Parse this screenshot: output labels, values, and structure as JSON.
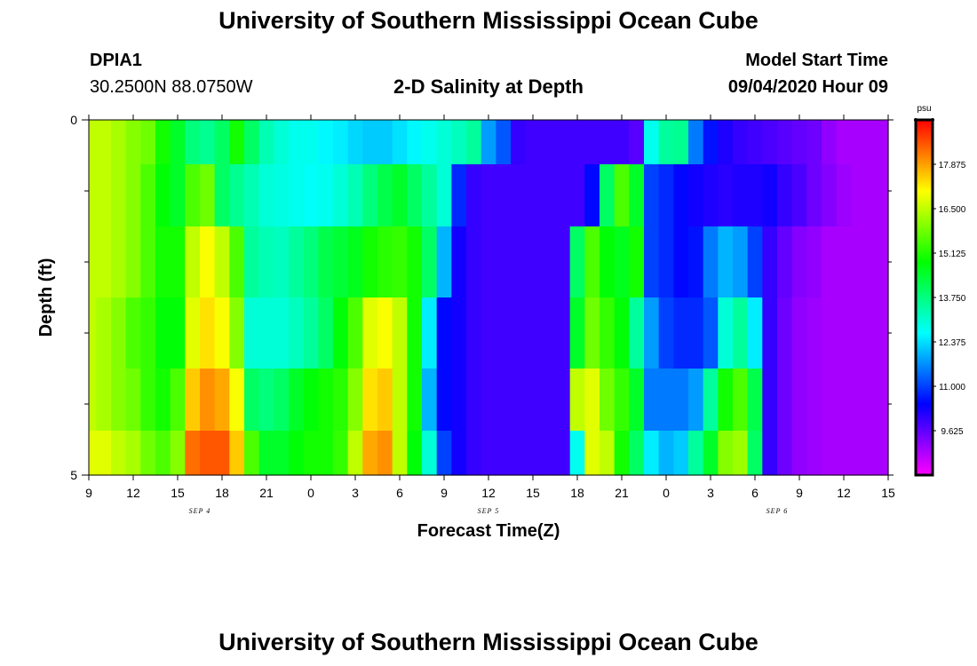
{
  "header": {
    "title": "University of Southern Mississippi Ocean Cube",
    "station": "DPIA1",
    "coords": "30.2500N 88.0750W",
    "subtitle": "2-D Salinity at Depth",
    "model_start_label": "Model Start Time",
    "model_start_value": "09/04/2020 Hour 09"
  },
  "footer": {
    "title": "University of Southern Mississippi Ocean Cube"
  },
  "chart_data": {
    "type": "heatmap",
    "title": "2-D Salinity at Depth",
    "xlabel": "Forecast Time(Z)",
    "ylabel": "Depth (ft)",
    "x_tick_labels": [
      "9",
      "12",
      "15",
      "18",
      "21",
      "0",
      "3",
      "6",
      "9",
      "12",
      "15",
      "18",
      "21",
      "0",
      "3",
      "6",
      "9",
      "12",
      "15"
    ],
    "x_range_hours": [
      0,
      54
    ],
    "date_labels": [
      {
        "text": "SEP 4",
        "hour": 7.5
      },
      {
        "text": "SEP 5",
        "hour": 27
      },
      {
        "text": "SEP 6",
        "hour": 46.5
      }
    ],
    "y_range_ft": [
      0,
      5
    ],
    "y_tick_labels": [
      {
        "value": 0,
        "label": "0"
      },
      {
        "value": 5,
        "label": "5"
      }
    ],
    "y_minor_ticks": [
      1,
      2,
      3,
      4
    ],
    "depth_layers_ft": [
      0.25,
      1.0,
      2.0,
      3.0,
      4.0,
      4.75
    ],
    "time_step_hours": 1,
    "salinity_psu": [
      [
        16.5,
        16.5,
        16.3,
        16.0,
        15.8,
        15.0,
        14.5,
        13.8,
        13.6,
        14.0,
        15.0,
        14.0,
        13.3,
        13.0,
        12.8,
        12.8,
        12.6,
        12.5,
        12.3,
        12.2,
        12.2,
        12.4,
        12.6,
        12.8,
        13.0,
        13.2,
        13.5,
        11.8,
        11.2,
        10.0,
        9.9,
        9.9,
        9.9,
        9.9,
        9.9,
        9.9,
        9.9,
        9.7,
        12.8,
        13.5,
        13.6,
        11.5,
        10.6,
        10.2,
        10.0,
        9.9,
        9.8,
        9.7,
        9.6,
        9.5,
        9.2,
        9.0,
        9.0,
        9.0,
        9.0
      ],
      [
        16.5,
        16.5,
        16.3,
        16.0,
        15.5,
        14.8,
        14.5,
        15.5,
        15.8,
        14.0,
        13.6,
        13.3,
        13.0,
        12.9,
        12.8,
        12.7,
        12.8,
        13.0,
        13.3,
        13.8,
        14.2,
        14.5,
        14.0,
        13.5,
        13.0,
        10.8,
        10.0,
        9.9,
        9.9,
        9.9,
        9.9,
        9.9,
        9.9,
        9.9,
        10.5,
        14.0,
        15.5,
        14.5,
        11.0,
        10.8,
        10.5,
        10.3,
        10.2,
        10.1,
        10.2,
        10.2,
        10.3,
        10.0,
        9.8,
        9.5,
        9.3,
        9.1,
        9.0,
        9.0,
        9.0
      ],
      [
        16.5,
        16.5,
        16.3,
        16.0,
        15.5,
        15.0,
        15.0,
        16.5,
        17.0,
        16.5,
        15.5,
        13.5,
        13.3,
        13.2,
        13.5,
        13.8,
        14.2,
        14.4,
        14.6,
        15.0,
        15.2,
        15.3,
        15.0,
        14.0,
        12.0,
        10.3,
        10.0,
        9.9,
        9.9,
        9.9,
        9.9,
        9.9,
        9.9,
        14.0,
        15.5,
        14.8,
        14.6,
        15.0,
        11.0,
        10.8,
        10.5,
        10.6,
        11.5,
        12.0,
        11.8,
        11.0,
        10.0,
        9.6,
        9.3,
        9.2,
        9.0,
        9.0,
        9.0,
        9.0,
        9.0
      ],
      [
        16.5,
        16.3,
        16.0,
        15.5,
        15.3,
        14.8,
        14.8,
        16.8,
        17.3,
        17.0,
        16.0,
        13.0,
        13.0,
        13.0,
        13.2,
        13.5,
        14.0,
        14.8,
        15.5,
        16.8,
        17.0,
        16.5,
        15.0,
        12.5,
        10.5,
        10.3,
        10.0,
        9.9,
        9.9,
        9.9,
        9.9,
        9.9,
        9.9,
        14.5,
        15.8,
        15.3,
        14.8,
        13.5,
        11.8,
        11.0,
        10.8,
        10.8,
        11.2,
        13.0,
        13.5,
        12.5,
        10.0,
        9.5,
        9.2,
        9.1,
        9.0,
        9.0,
        9.0,
        9.0,
        9.0
      ],
      [
        16.5,
        16.3,
        16.0,
        15.8,
        15.3,
        15.0,
        15.5,
        17.5,
        18.0,
        17.8,
        17.0,
        14.0,
        13.8,
        14.0,
        14.5,
        14.8,
        15.0,
        15.2,
        16.0,
        17.3,
        17.5,
        16.5,
        15.0,
        12.0,
        10.5,
        10.3,
        10.0,
        9.9,
        9.9,
        9.9,
        9.9,
        9.9,
        9.9,
        16.5,
        16.8,
        15.8,
        15.3,
        14.5,
        11.5,
        11.5,
        11.5,
        11.8,
        13.5,
        15.0,
        15.5,
        14.2,
        10.0,
        9.5,
        9.2,
        9.1,
        9.0,
        9.0,
        9.0,
        9.0,
        9.0
      ],
      [
        16.8,
        16.8,
        16.5,
        16.3,
        15.8,
        15.5,
        16.0,
        18.3,
        18.5,
        18.5,
        17.5,
        15.5,
        14.5,
        14.5,
        14.8,
        15.0,
        15.0,
        15.3,
        16.5,
        17.8,
        18.0,
        16.5,
        14.8,
        13.0,
        11.0,
        10.3,
        10.0,
        9.9,
        9.9,
        9.9,
        9.9,
        9.9,
        9.9,
        12.8,
        16.8,
        16.5,
        15.0,
        14.0,
        12.5,
        12.0,
        12.2,
        13.5,
        14.5,
        16.0,
        16.2,
        14.0,
        10.0,
        9.5,
        9.2,
        9.1,
        9.0,
        9.0,
        9.0,
        9.0,
        9.0
      ]
    ],
    "colorbar": {
      "unit": "psu",
      "range": [
        8.25,
        19.25
      ],
      "tick_labels": [
        "17.875",
        "16.500",
        "15.125",
        "13.750",
        "12.375",
        "11.000",
        "9.625"
      ]
    }
  }
}
